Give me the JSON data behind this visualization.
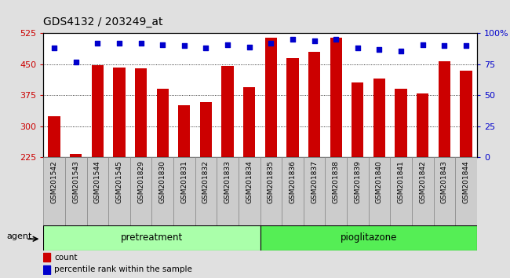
{
  "title": "GDS4132 / 203249_at",
  "samples": [
    "GSM201542",
    "GSM201543",
    "GSM201544",
    "GSM201545",
    "GSM201829",
    "GSM201830",
    "GSM201831",
    "GSM201832",
    "GSM201833",
    "GSM201834",
    "GSM201835",
    "GSM201836",
    "GSM201837",
    "GSM201838",
    "GSM201839",
    "GSM201840",
    "GSM201841",
    "GSM201842",
    "GSM201843",
    "GSM201844"
  ],
  "bar_values": [
    325,
    232,
    448,
    442,
    440,
    390,
    350,
    358,
    445,
    395,
    515,
    465,
    480,
    515,
    405,
    415,
    390,
    380,
    458,
    435
  ],
  "dot_values_pct": [
    88,
    77,
    92,
    92,
    92,
    91,
    90,
    88,
    91,
    89,
    92,
    95,
    94,
    95,
    88,
    87,
    86,
    91,
    90,
    90
  ],
  "bar_color": "#cc0000",
  "dot_color": "#0000cc",
  "ylim_left": [
    225,
    525
  ],
  "ylim_right": [
    0,
    100
  ],
  "yticks_left": [
    225,
    300,
    375,
    450,
    525
  ],
  "yticks_right": [
    0,
    25,
    50,
    75,
    100
  ],
  "ytick_labels_right": [
    "0",
    "25",
    "50",
    "75",
    "100%"
  ],
  "group_label_pretreatment": "pretreatment",
  "group_label_pioglitazone": "pioglitazone",
  "n_pretreatment": 10,
  "agent_label": "agent",
  "legend_count": "count",
  "legend_pct": "percentile rank within the sample",
  "bar_width": 0.55,
  "title_fontsize": 10,
  "tick_fontsize": 6.5,
  "left_axis_color": "#cc0000",
  "right_axis_color": "#0000cc",
  "group_pre_color": "#aaffaa",
  "group_pio_color": "#55ee55",
  "fig_bg": "#e0e0e0",
  "plot_bg": "#ffffff"
}
